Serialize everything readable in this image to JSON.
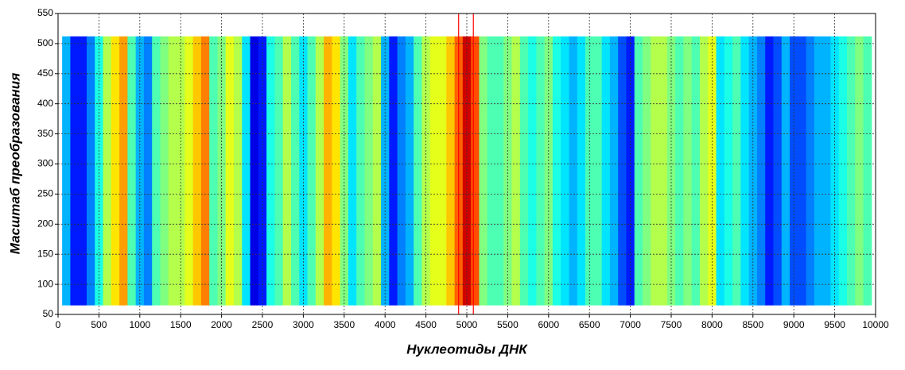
{
  "chart_data": {
    "type": "heatmap",
    "xlabel": "Нуклеотиды ДНК",
    "ylabel": "Масштаб преобразования",
    "xlim": [
      0,
      10000
    ],
    "ylim": [
      50,
      550
    ],
    "xticks": [
      0,
      500,
      1000,
      1500,
      2000,
      2500,
      3000,
      3500,
      4000,
      4500,
      5000,
      5500,
      6000,
      6500,
      7000,
      7500,
      8000,
      8500,
      9000,
      9500,
      10000
    ],
    "yticks": [
      50,
      100,
      150,
      200,
      250,
      300,
      350,
      400,
      450,
      500,
      550
    ],
    "grid": true,
    "colormap": "jet",
    "value_range": [
      0,
      1
    ],
    "cell_width": 100,
    "y_extent": [
      65,
      512
    ],
    "x": [
      100,
      200,
      300,
      400,
      500,
      600,
      700,
      800,
      900,
      1000,
      1100,
      1200,
      1300,
      1400,
      1500,
      1600,
      1700,
      1800,
      1900,
      2000,
      2100,
      2200,
      2300,
      2400,
      2500,
      2600,
      2700,
      2800,
      2900,
      3000,
      3100,
      3200,
      3300,
      3400,
      3500,
      3600,
      3700,
      3800,
      3900,
      4000,
      4100,
      4200,
      4300,
      4400,
      4500,
      4600,
      4700,
      4800,
      4900,
      5000,
      5100,
      5200,
      5300,
      5400,
      5500,
      5600,
      5700,
      5800,
      5900,
      6000,
      6100,
      6200,
      6300,
      6400,
      6500,
      6600,
      6700,
      6800,
      6900,
      7000,
      7100,
      7200,
      7300,
      7400,
      7500,
      7600,
      7700,
      7800,
      7900,
      8000,
      8100,
      8200,
      8300,
      8400,
      8500,
      8600,
      8700,
      8800,
      8900,
      9000,
      9100,
      9200,
      9300,
      9400,
      9500,
      9600,
      9700,
      9800,
      9900
    ],
    "values": [
      0.3,
      0.15,
      0.15,
      0.25,
      0.4,
      0.55,
      0.65,
      0.72,
      0.45,
      0.3,
      0.25,
      0.45,
      0.5,
      0.55,
      0.55,
      0.6,
      0.68,
      0.75,
      0.45,
      0.5,
      0.6,
      0.55,
      0.35,
      0.1,
      0.15,
      0.4,
      0.45,
      0.55,
      0.45,
      0.35,
      0.45,
      0.55,
      0.7,
      0.65,
      0.5,
      0.35,
      0.45,
      0.5,
      0.55,
      0.3,
      0.15,
      0.25,
      0.3,
      0.45,
      0.55,
      0.6,
      0.6,
      0.68,
      0.78,
      0.92,
      0.8,
      0.5,
      0.45,
      0.45,
      0.5,
      0.55,
      0.45,
      0.4,
      0.45,
      0.5,
      0.4,
      0.35,
      0.3,
      0.35,
      0.45,
      0.45,
      0.35,
      0.3,
      0.2,
      0.15,
      0.45,
      0.5,
      0.55,
      0.55,
      0.5,
      0.45,
      0.5,
      0.45,
      0.55,
      0.6,
      0.35,
      0.4,
      0.45,
      0.35,
      0.3,
      0.25,
      0.15,
      0.2,
      0.3,
      0.2,
      0.2,
      0.25,
      0.3,
      0.3,
      0.35,
      0.4,
      0.45,
      0.5,
      0.45
    ],
    "markers": [
      4900,
      5080
    ],
    "marker_color": "#ff0000"
  }
}
